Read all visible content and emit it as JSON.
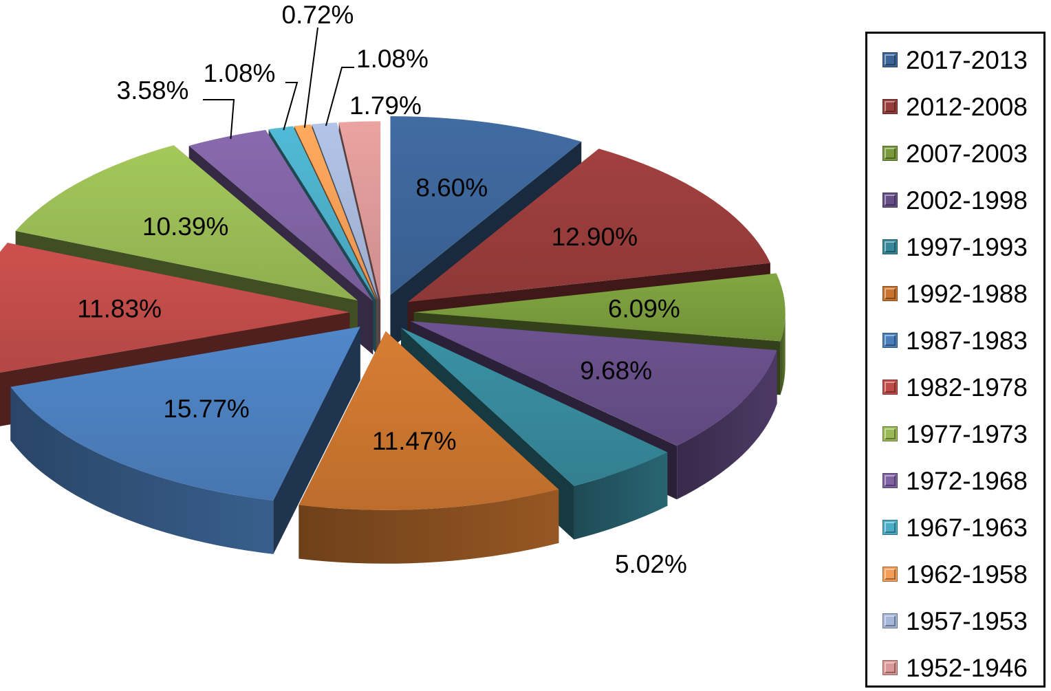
{
  "chart_data": {
    "type": "pie",
    "title": "",
    "legend_position": "right",
    "categories": [
      "2017-2013",
      "2012-2008",
      "2007-2003",
      "2002-1998",
      "1997-1993",
      "1992-1988",
      "1987-1983",
      "1982-1978",
      "1977-1973",
      "1972-1968",
      "1967-1963",
      "1962-1958",
      "1957-1953",
      "1952-1946"
    ],
    "values": [
      8.6,
      12.9,
      6.09,
      9.68,
      5.02,
      11.47,
      15.77,
      11.83,
      10.39,
      3.58,
      1.08,
      0.72,
      1.08,
      1.79
    ],
    "data_labels": [
      "8.60%",
      "12.90%",
      "6.09%",
      "9.68%",
      "5.02%",
      "11.47%",
      "15.77%",
      "11.83%",
      "10.39%",
      "3.58%",
      "1.08%",
      "0.72%",
      "1.08%",
      "1.79%"
    ],
    "colors": [
      "#3c6497",
      "#963c3a",
      "#789a3c",
      "#654d86",
      "#368799",
      "#c8742f",
      "#4a7ebb",
      "#be4b48",
      "#98b954",
      "#7e62a1",
      "#4bacc6",
      "#f59d56",
      "#a5b6d8",
      "#d99795"
    ]
  }
}
